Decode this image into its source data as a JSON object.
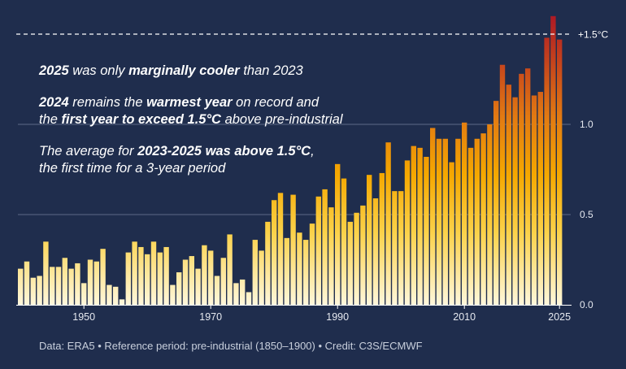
{
  "chart_data": {
    "type": "bar",
    "x_start_year": 1940,
    "values": [
      0.2,
      0.24,
      0.15,
      0.16,
      0.35,
      0.21,
      0.21,
      0.26,
      0.2,
      0.23,
      0.12,
      0.25,
      0.24,
      0.31,
      0.11,
      0.1,
      0.03,
      0.29,
      0.35,
      0.32,
      0.28,
      0.35,
      0.29,
      0.32,
      0.11,
      0.18,
      0.25,
      0.27,
      0.2,
      0.33,
      0.3,
      0.16,
      0.26,
      0.39,
      0.12,
      0.14,
      0.07,
      0.36,
      0.3,
      0.46,
      0.58,
      0.62,
      0.37,
      0.61,
      0.4,
      0.36,
      0.45,
      0.6,
      0.64,
      0.54,
      0.78,
      0.7,
      0.46,
      0.51,
      0.55,
      0.72,
      0.59,
      0.73,
      0.9,
      0.63,
      0.63,
      0.8,
      0.88,
      0.87,
      0.82,
      0.98,
      0.92,
      0.92,
      0.79,
      0.92,
      1.01,
      0.87,
      0.92,
      0.95,
      1.0,
      1.13,
      1.33,
      1.22,
      1.15,
      1.28,
      1.31,
      1.16,
      1.18,
      1.48,
      1.6,
      1.47
    ],
    "x_ticks": [
      "1950",
      "1970",
      "1990",
      "2010",
      "2025"
    ],
    "x_tick_years": [
      1950,
      1970,
      1990,
      2010,
      2025
    ],
    "y_ticks": [
      "0.0",
      "0.5",
      "1.0"
    ],
    "y_tick_values": [
      0,
      0.5,
      1.0
    ],
    "threshold_label": "+1.5°C",
    "threshold_value": 1.5,
    "ylim": [
      0,
      1.6
    ],
    "grid": true,
    "colors": {
      "background": "#1f2d4d",
      "low": "#fff5d6",
      "mid": "#f6b400",
      "high": "#b22222",
      "gridline": "#6c7896",
      "threshold": "#ffffff"
    }
  },
  "annotations": [
    [
      {
        "t": "2025",
        "b": true
      },
      {
        "t": " was only "
      },
      {
        "t": "marginally cooler",
        "b": true
      },
      {
        "t": " than 2023"
      }
    ],
    [
      {
        "t": "2024",
        "b": true
      },
      {
        "t": " remains the "
      },
      {
        "t": "warmest year",
        "b": true
      },
      {
        "t": " on record and"
      }
    ],
    [
      {
        "t": "the "
      },
      {
        "t": "first year to exceed 1.5°C",
        "b": true
      },
      {
        "t": " above pre-industrial"
      }
    ],
    [
      {
        "t": "The average for "
      },
      {
        "t": "2023-2025 was",
        "b": true
      },
      {
        "t": " "
      },
      {
        "t": "above 1.5°C",
        "b": true
      },
      {
        "t": ","
      }
    ],
    [
      {
        "t": "the first time for a 3-year period"
      }
    ]
  ],
  "credit": "Data: ERA5 • Reference period: pre-industrial (1850–1900) • Credit: C3S/ECMWF"
}
